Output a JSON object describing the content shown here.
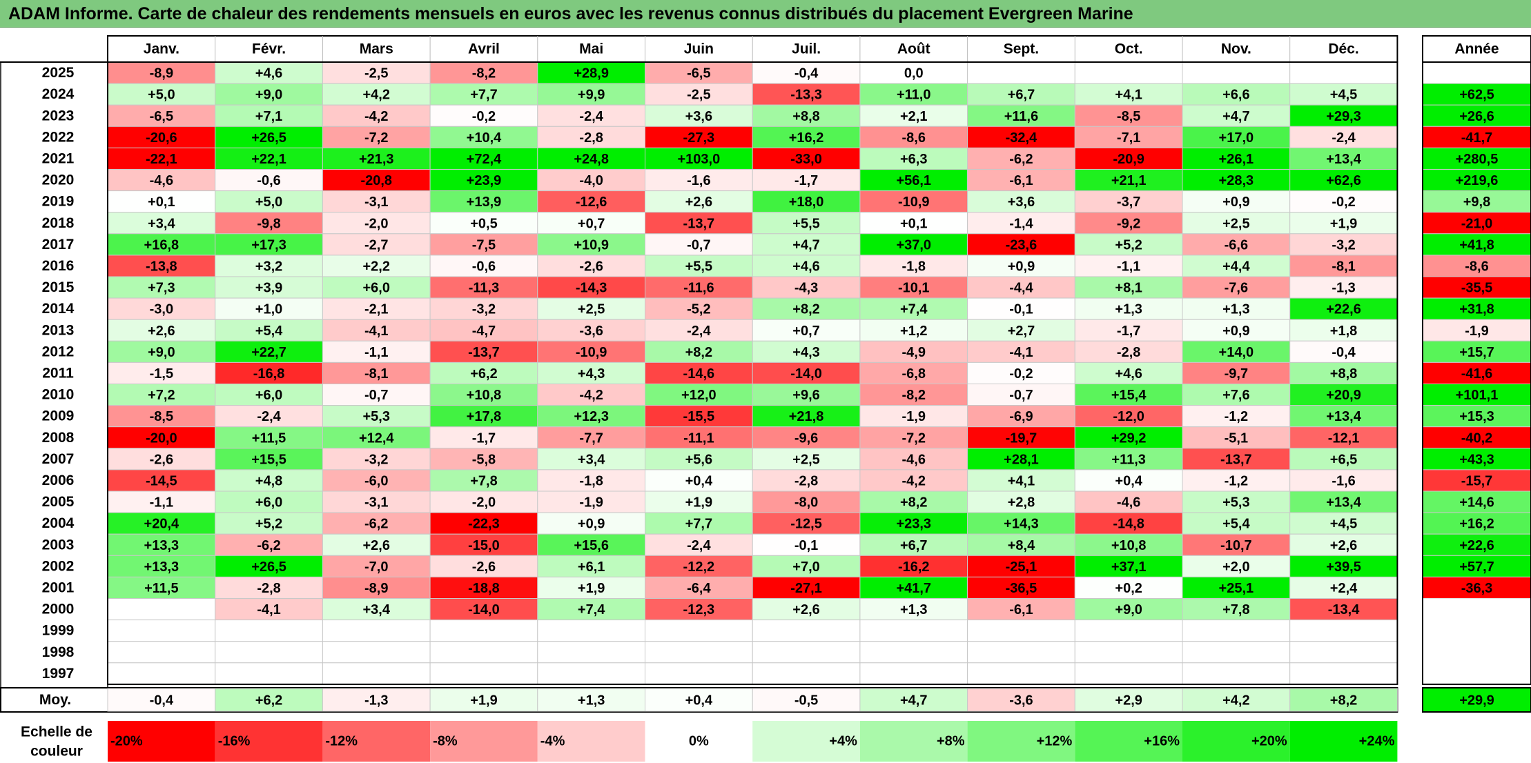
{
  "title": "ADAM Informe. Carte de chaleur des rendements mensuels en euros avec les revenus connus distribués du placement Evergreen Marine",
  "chart_data": {
    "type": "heatmap",
    "months": [
      "Janv.",
      "Févr.",
      "Mars",
      "Avril",
      "Mai",
      "Juin",
      "Juil.",
      "Août",
      "Sept.",
      "Oct.",
      "Nov.",
      "Déc."
    ],
    "year_header": "Année",
    "avg_label": "Moy.",
    "scale_label_line1": "Echelle de",
    "scale_label_line2": "couleur",
    "years": [
      "2025",
      "2024",
      "2023",
      "2022",
      "2021",
      "2020",
      "2019",
      "2018",
      "2017",
      "2016",
      "2015",
      "2014",
      "2013",
      "2012",
      "2011",
      "2010",
      "2009",
      "2008",
      "2007",
      "2006",
      "2005",
      "2004",
      "2003",
      "2002",
      "2001",
      "2000",
      "1999",
      "1998",
      "1997"
    ],
    "values": [
      [
        "-8,9",
        "+4,6",
        "-2,5",
        "-8,2",
        "+28,9",
        "-6,5",
        "-0,4",
        "0,0",
        "",
        "",
        "",
        ""
      ],
      [
        "+5,0",
        "+9,0",
        "+4,2",
        "+7,7",
        "+9,9",
        "-2,5",
        "-13,3",
        "+11,0",
        "+6,7",
        "+4,1",
        "+6,6",
        "+4,5"
      ],
      [
        "-6,5",
        "+7,1",
        "-4,2",
        "-0,2",
        "-2,4",
        "+3,6",
        "+8,8",
        "+2,1",
        "+11,6",
        "-8,5",
        "+4,7",
        "+29,3"
      ],
      [
        "-20,6",
        "+26,5",
        "-7,2",
        "+10,4",
        "-2,8",
        "-27,3",
        "+16,2",
        "-8,6",
        "-32,4",
        "-7,1",
        "+17,0",
        "-2,4"
      ],
      [
        "-22,1",
        "+22,1",
        "+21,3",
        "+72,4",
        "+24,8",
        "+103,0",
        "-33,0",
        "+6,3",
        "-6,2",
        "-20,9",
        "+26,1",
        "+13,4"
      ],
      [
        "-4,6",
        "-0,6",
        "-20,8",
        "+23,9",
        "-4,0",
        "-1,6",
        "-1,7",
        "+56,1",
        "-6,1",
        "+21,1",
        "+28,3",
        "+62,6"
      ],
      [
        "+0,1",
        "+5,0",
        "-3,1",
        "+13,9",
        "-12,6",
        "+2,6",
        "+18,0",
        "-10,9",
        "+3,6",
        "-3,7",
        "+0,9",
        "-0,2"
      ],
      [
        "+3,4",
        "-9,8",
        "-2,0",
        "+0,5",
        "+0,7",
        "-13,7",
        "+5,5",
        "+0,1",
        "-1,4",
        "-9,2",
        "+2,5",
        "+1,9"
      ],
      [
        "+16,8",
        "+17,3",
        "-2,7",
        "-7,5",
        "+10,9",
        "-0,7",
        "+4,7",
        "+37,0",
        "-23,6",
        "+5,2",
        "-6,6",
        "-3,2"
      ],
      [
        "-13,8",
        "+3,2",
        "+2,2",
        "-0,6",
        "-2,6",
        "+5,5",
        "+4,6",
        "-1,8",
        "+0,9",
        "-1,1",
        "+4,4",
        "-8,1"
      ],
      [
        "+7,3",
        "+3,9",
        "+6,0",
        "-11,3",
        "-14,3",
        "-11,6",
        "-4,3",
        "-10,1",
        "-4,4",
        "+8,1",
        "-7,6",
        "-1,3"
      ],
      [
        "-3,0",
        "+1,0",
        "-2,1",
        "-3,2",
        "+2,5",
        "-5,2",
        "+8,2",
        "+7,4",
        "-0,1",
        "+1,3",
        "+1,3",
        "+22,6"
      ],
      [
        "+2,6",
        "+5,4",
        "-4,1",
        "-4,7",
        "-3,6",
        "-2,4",
        "+0,7",
        "+1,2",
        "+2,7",
        "-1,7",
        "+0,9",
        "+1,8"
      ],
      [
        "+9,0",
        "+22,7",
        "-1,1",
        "-13,7",
        "-10,9",
        "+8,2",
        "+4,3",
        "-4,9",
        "-4,1",
        "-2,8",
        "+14,0",
        "-0,4"
      ],
      [
        "-1,5",
        "-16,8",
        "-8,1",
        "+6,2",
        "+4,3",
        "-14,6",
        "-14,0",
        "-6,8",
        "-0,2",
        "+4,6",
        "-9,7",
        "+8,8"
      ],
      [
        "+7,2",
        "+6,0",
        "-0,7",
        "+10,8",
        "-4,2",
        "+12,0",
        "+9,6",
        "-8,2",
        "-0,7",
        "+15,4",
        "+7,6",
        "+20,9"
      ],
      [
        "-8,5",
        "-2,4",
        "+5,3",
        "+17,8",
        "+12,3",
        "-15,5",
        "+21,8",
        "-1,9",
        "-6,9",
        "-12,0",
        "-1,2",
        "+13,4"
      ],
      [
        "-20,0",
        "+11,5",
        "+12,4",
        "-1,7",
        "-7,7",
        "-11,1",
        "-9,6",
        "-7,2",
        "-19,7",
        "+29,2",
        "-5,1",
        "-12,1"
      ],
      [
        "-2,6",
        "+15,5",
        "-3,2",
        "-5,8",
        "+3,4",
        "+5,6",
        "+2,5",
        "-4,6",
        "+28,1",
        "+11,3",
        "-13,7",
        "+6,5"
      ],
      [
        "-14,5",
        "+4,8",
        "-6,0",
        "+7,8",
        "-1,8",
        "+0,4",
        "-2,8",
        "-4,2",
        "+4,1",
        "+0,4",
        "-1,2",
        "-1,6"
      ],
      [
        "-1,1",
        "+6,0",
        "-3,1",
        "-2,0",
        "-1,9",
        "+1,9",
        "-8,0",
        "+8,2",
        "+2,8",
        "-4,6",
        "+5,3",
        "+13,4"
      ],
      [
        "+20,4",
        "+5,2",
        "-6,2",
        "-22,3",
        "+0,9",
        "+7,7",
        "-12,5",
        "+23,3",
        "+14,3",
        "-14,8",
        "+5,4",
        "+4,5"
      ],
      [
        "+13,3",
        "-6,2",
        "+2,6",
        "-15,0",
        "+15,6",
        "-2,4",
        "-0,1",
        "+6,7",
        "+8,4",
        "+10,8",
        "-10,7",
        "+2,6"
      ],
      [
        "+13,3",
        "+26,5",
        "-7,0",
        "-2,6",
        "+6,1",
        "-12,2",
        "+7,0",
        "-16,2",
        "-25,1",
        "+37,1",
        "+2,0",
        "+39,5"
      ],
      [
        "+11,5",
        "-2,8",
        "-8,9",
        "-18,8",
        "+1,9",
        "-6,4",
        "-27,1",
        "+41,7",
        "-36,5",
        "+0,2",
        "+25,1",
        "+2,4"
      ],
      [
        "",
        "-4,1",
        "+3,4",
        "-14,0",
        "+7,4",
        "-12,3",
        "+2,6",
        "+1,3",
        "-6,1",
        "+9,0",
        "+7,8",
        "-13,4"
      ],
      [
        "",
        "",
        "",
        "",
        "",
        "",
        "",
        "",
        "",
        "",
        "",
        ""
      ],
      [
        "",
        "",
        "",
        "",
        "",
        "",
        "",
        "",
        "",
        "",
        "",
        ""
      ],
      [
        "",
        "",
        "",
        "",
        "",
        "",
        "",
        "",
        "",
        "",
        "",
        ""
      ]
    ],
    "annual": [
      "",
      "+62,5",
      "+26,6",
      "-41,7",
      "+280,5",
      "+219,6",
      "+9,8",
      "-21,0",
      "+41,8",
      "-8,6",
      "-35,5",
      "+31,8",
      "-1,9",
      "+15,7",
      "-41,6",
      "+101,1",
      "+15,3",
      "-40,2",
      "+43,3",
      "-15,7",
      "+14,6",
      "+16,2",
      "+22,6",
      "+57,7",
      "-36,3",
      "",
      "",
      "",
      ""
    ],
    "averages": [
      "-0,4",
      "+6,2",
      "-1,3",
      "+1,9",
      "+1,3",
      "+0,4",
      "-0,5",
      "+4,7",
      "-3,6",
      "+2,9",
      "+4,2",
      "+8,2"
    ],
    "avg_annual": "+29,9",
    "scale": [
      "-20%",
      "-16%",
      "-12%",
      "-8%",
      "-4%",
      "0%",
      "+4%",
      "+8%",
      "+12%",
      "+16%",
      "+20%",
      "+24%"
    ],
    "scale_values": [
      -20,
      -16,
      -12,
      -8,
      -4,
      0,
      4,
      8,
      12,
      16,
      20,
      24
    ],
    "colors": {
      "negative_max": "#ff0000",
      "neutral": "#ffffff",
      "positive_max": "#00ee00",
      "title_bg": "#7fc97f"
    }
  }
}
